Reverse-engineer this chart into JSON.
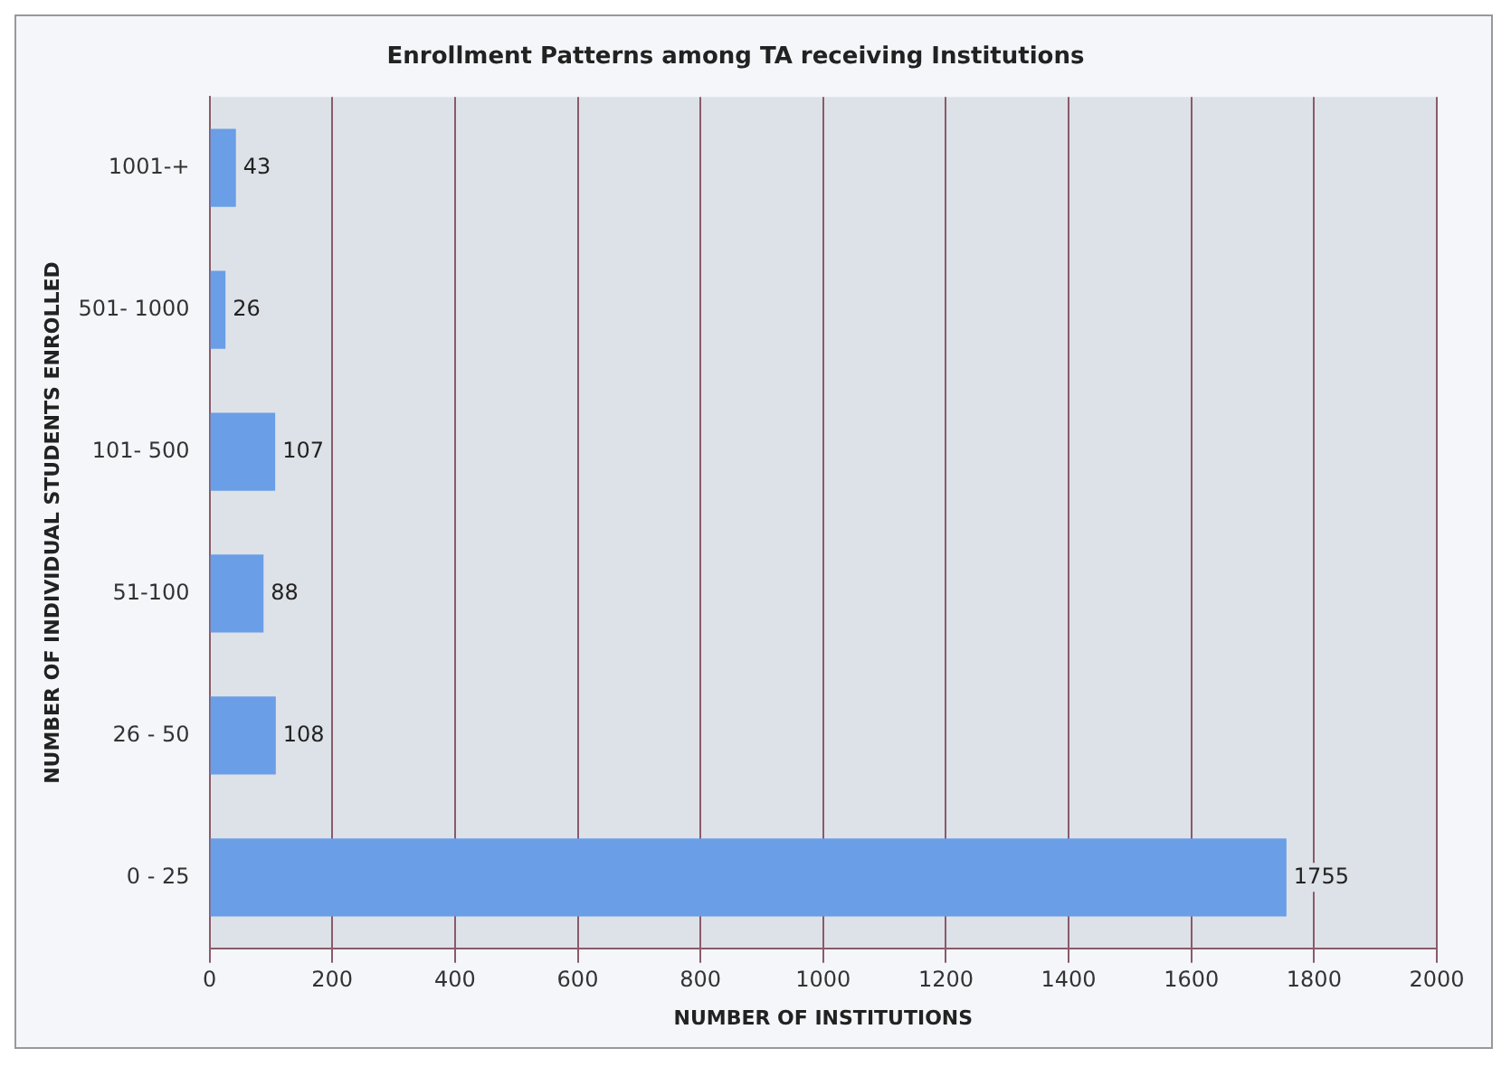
{
  "chart_data": {
    "type": "bar",
    "orientation": "horizontal",
    "title": "Enrollment Patterns among TA receiving Institutions",
    "xlabel": "NUMBER OF INSTITUTIONS",
    "ylabel": "NUMBER OF INDIVIDUAL STUDENTS ENROLLED",
    "categories": [
      "1001-+",
      "501- 1000",
      "101- 500",
      "51-100",
      "26 - 50",
      "0 - 25"
    ],
    "values": [
      43,
      26,
      107,
      88,
      108,
      1755
    ],
    "color": "#6a9ee6",
    "xlim": [
      0,
      2000
    ],
    "xticks": [
      0,
      200,
      400,
      600,
      800,
      1000,
      1200,
      1400,
      1600,
      1800,
      2000
    ],
    "grid": "x",
    "data_labels": true
  }
}
